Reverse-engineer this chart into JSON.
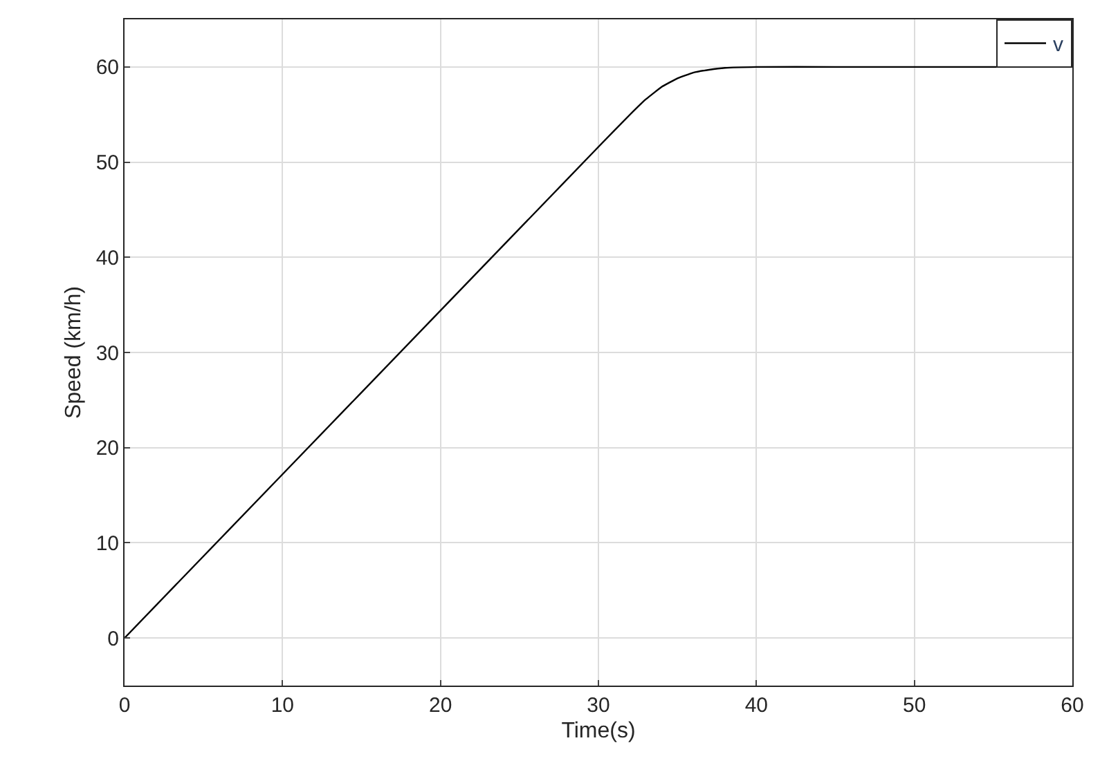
{
  "chart_data": {
    "type": "line",
    "xlabel": "Time(s)",
    "ylabel": "Speed (km/h)",
    "x": [
      0,
      10,
      20,
      30,
      32,
      33,
      34,
      35,
      36,
      37,
      38,
      40,
      45,
      50,
      55,
      60
    ],
    "series": [
      {
        "name": "v",
        "color": "#000000",
        "values": [
          0,
          17.2,
          34.4,
          51.6,
          55.0,
          56.6,
          57.9,
          58.8,
          59.4,
          59.7,
          59.9,
          60,
          60,
          60,
          60,
          60
        ]
      }
    ],
    "xlim": [
      0,
      60
    ],
    "xticks": [
      0,
      10,
      20,
      30,
      40,
      50,
      60
    ],
    "ylim": [
      -5,
      65
    ],
    "yticks": [
      0,
      10,
      20,
      30,
      40,
      50,
      60
    ],
    "grid": true,
    "legend": "top right",
    "marker": "none",
    "line_style": "solid"
  }
}
